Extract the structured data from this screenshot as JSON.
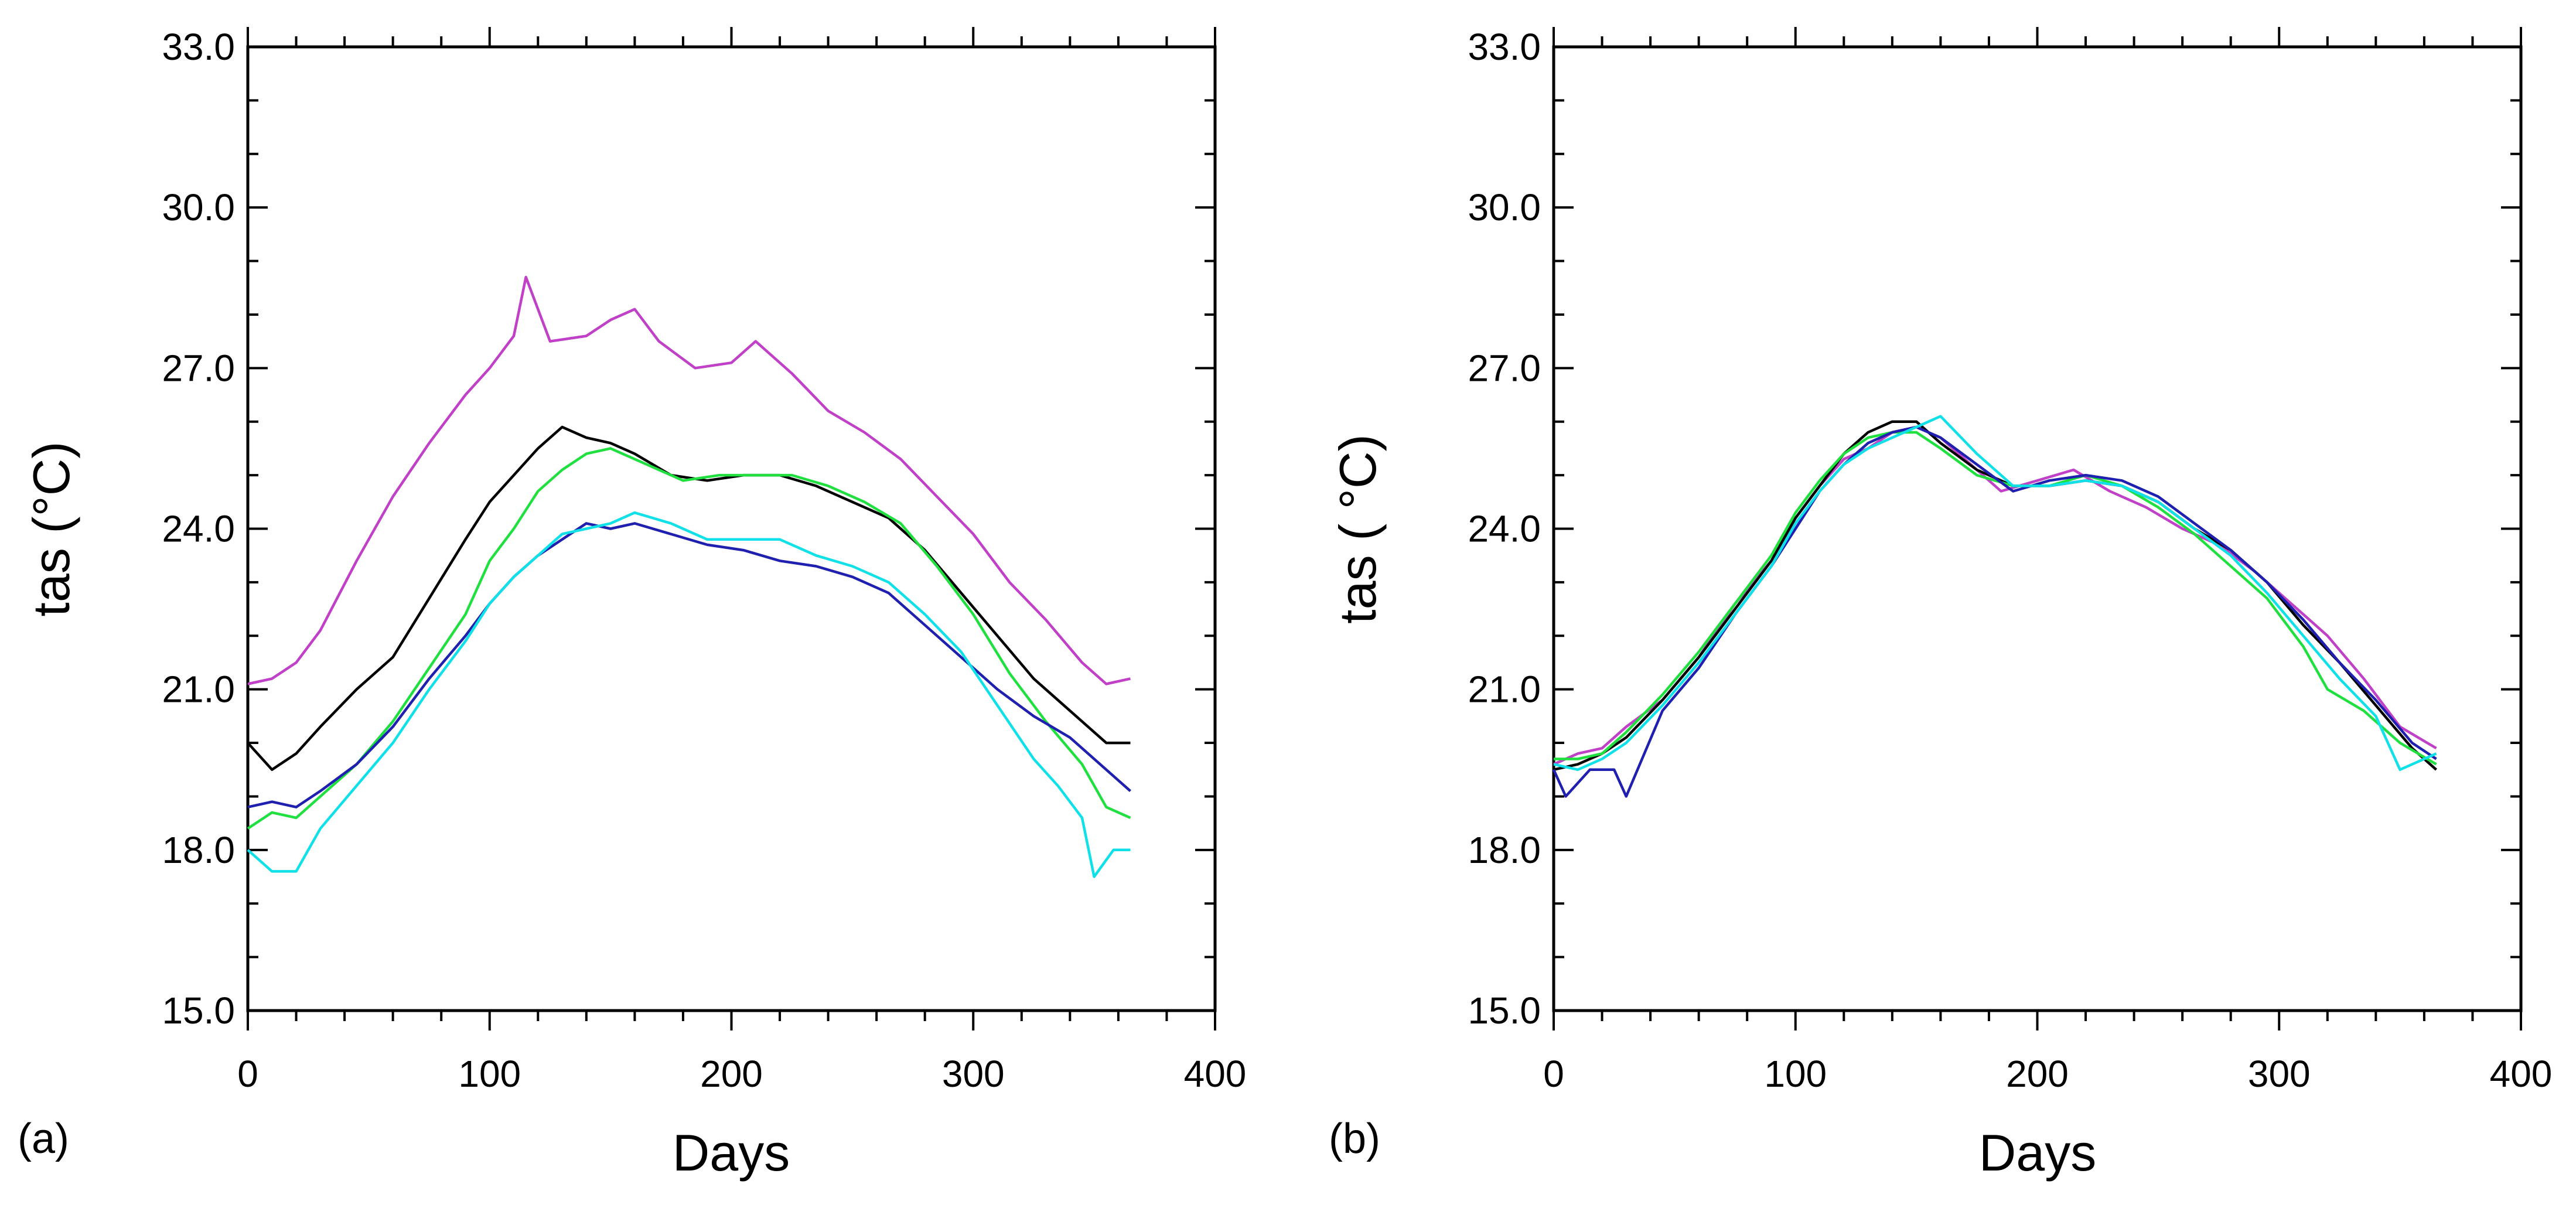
{
  "chart_data": [
    {
      "type": "line",
      "panel_label": "(a)",
      "title": "",
      "xlabel": "Days",
      "ylabel": "tas  (°C)",
      "xlim": [
        0,
        400
      ],
      "ylim": [
        15.0,
        33.0
      ],
      "xticks": [
        0,
        100,
        200,
        300,
        400
      ],
      "xtick_labels": [
        "0",
        "100",
        "200",
        "300",
        "400"
      ],
      "yticks": [
        15.0,
        18.0,
        21.0,
        24.0,
        27.0,
        30.0,
        33.0
      ],
      "ytick_labels": [
        "15.0",
        "18.0",
        "21.0",
        "24.0",
        "27.0",
        "30.0",
        "33.0"
      ],
      "grid": false,
      "series": [
        {
          "name": "magenta",
          "color": "#c040c8",
          "x": [
            0,
            10,
            20,
            30,
            45,
            60,
            75,
            90,
            100,
            110,
            115,
            125,
            140,
            150,
            160,
            170,
            185,
            200,
            210,
            225,
            240,
            255,
            270,
            285,
            300,
            315,
            330,
            345,
            355,
            365
          ],
          "y": [
            21.1,
            21.2,
            21.5,
            22.1,
            23.4,
            24.6,
            25.6,
            26.5,
            27.0,
            27.6,
            28.7,
            27.5,
            27.6,
            27.9,
            28.1,
            27.5,
            27.0,
            27.1,
            27.5,
            26.9,
            26.2,
            25.8,
            25.3,
            24.6,
            23.9,
            23.0,
            22.3,
            21.5,
            21.1,
            21.2
          ]
        },
        {
          "name": "black",
          "color": "#000000",
          "x": [
            0,
            10,
            20,
            30,
            45,
            60,
            75,
            90,
            100,
            110,
            120,
            130,
            140,
            150,
            160,
            175,
            190,
            205,
            220,
            235,
            250,
            265,
            280,
            295,
            310,
            325,
            340,
            355,
            365
          ],
          "y": [
            20.0,
            19.5,
            19.8,
            20.3,
            21.0,
            21.6,
            22.7,
            23.8,
            24.5,
            25.0,
            25.5,
            25.9,
            25.7,
            25.6,
            25.4,
            25.0,
            24.9,
            25.0,
            25.0,
            24.8,
            24.5,
            24.2,
            23.6,
            22.8,
            22.0,
            21.2,
            20.6,
            20.0,
            20.0
          ]
        },
        {
          "name": "green",
          "color": "#20e040",
          "x": [
            0,
            10,
            20,
            30,
            45,
            60,
            75,
            90,
            100,
            110,
            120,
            130,
            140,
            150,
            165,
            180,
            195,
            210,
            225,
            240,
            255,
            270,
            285,
            300,
            315,
            330,
            345,
            355,
            365
          ],
          "y": [
            18.4,
            18.7,
            18.6,
            19.0,
            19.6,
            20.4,
            21.4,
            22.4,
            23.4,
            24.0,
            24.7,
            25.1,
            25.4,
            25.5,
            25.2,
            24.9,
            25.0,
            25.0,
            25.0,
            24.8,
            24.5,
            24.1,
            23.3,
            22.4,
            21.3,
            20.4,
            19.6,
            18.8,
            18.6
          ]
        },
        {
          "name": "navy",
          "color": "#2020b0",
          "x": [
            0,
            10,
            20,
            30,
            45,
            60,
            75,
            90,
            100,
            110,
            120,
            130,
            140,
            150,
            160,
            175,
            190,
            205,
            220,
            235,
            250,
            265,
            280,
            295,
            310,
            325,
            340,
            355,
            365
          ],
          "y": [
            18.8,
            18.9,
            18.8,
            19.1,
            19.6,
            20.3,
            21.2,
            22.0,
            22.6,
            23.1,
            23.5,
            23.8,
            24.1,
            24.0,
            24.1,
            23.9,
            23.7,
            23.6,
            23.4,
            23.3,
            23.1,
            22.8,
            22.2,
            21.6,
            21.0,
            20.5,
            20.1,
            19.5,
            19.1
          ]
        },
        {
          "name": "cyan",
          "color": "#10e0e8",
          "x": [
            0,
            10,
            20,
            30,
            45,
            60,
            75,
            90,
            100,
            110,
            120,
            130,
            140,
            150,
            160,
            175,
            190,
            205,
            220,
            235,
            250,
            265,
            280,
            295,
            310,
            325,
            335,
            345,
            350,
            358,
            365
          ],
          "y": [
            18.0,
            17.6,
            17.6,
            18.4,
            19.2,
            20.0,
            21.0,
            21.9,
            22.6,
            23.1,
            23.5,
            23.9,
            24.0,
            24.1,
            24.3,
            24.1,
            23.8,
            23.8,
            23.8,
            23.5,
            23.3,
            23.0,
            22.4,
            21.7,
            20.7,
            19.7,
            19.2,
            18.6,
            17.5,
            18.0,
            18.0
          ]
        }
      ]
    },
    {
      "type": "line",
      "panel_label": "(b)",
      "title": "",
      "xlabel": "Days",
      "ylabel": "tas ( °C)",
      "xlim": [
        0,
        400
      ],
      "ylim": [
        15.0,
        33.0
      ],
      "xticks": [
        0,
        100,
        200,
        300,
        400
      ],
      "xtick_labels": [
        "0",
        "100",
        "200",
        "300",
        "400"
      ],
      "yticks": [
        15.0,
        18.0,
        21.0,
        24.0,
        27.0,
        30.0,
        33.0
      ],
      "ytick_labels": [
        "15.0",
        "18.0",
        "21.0",
        "24.0",
        "27.0",
        "30.0",
        "33.0"
      ],
      "grid": false,
      "series": [
        {
          "name": "magenta",
          "color": "#c040c8",
          "x": [
            0,
            10,
            20,
            30,
            45,
            60,
            75,
            90,
            100,
            110,
            120,
            130,
            140,
            150,
            160,
            170,
            185,
            200,
            215,
            230,
            245,
            260,
            275,
            290,
            305,
            320,
            335,
            350,
            365
          ],
          "y": [
            19.6,
            19.8,
            19.9,
            20.3,
            20.8,
            21.6,
            22.6,
            23.4,
            24.2,
            24.8,
            25.3,
            25.5,
            25.8,
            25.9,
            25.7,
            25.3,
            24.7,
            24.9,
            25.1,
            24.7,
            24.4,
            24.0,
            23.7,
            23.2,
            22.6,
            22.0,
            21.2,
            20.3,
            19.9
          ]
        },
        {
          "name": "black",
          "color": "#000000",
          "x": [
            0,
            10,
            20,
            30,
            45,
            60,
            75,
            90,
            100,
            110,
            120,
            130,
            140,
            150,
            160,
            175,
            190,
            205,
            220,
            235,
            250,
            265,
            280,
            295,
            310,
            325,
            340,
            355,
            365
          ],
          "y": [
            19.5,
            19.6,
            19.8,
            20.1,
            20.8,
            21.6,
            22.5,
            23.4,
            24.2,
            24.8,
            25.4,
            25.8,
            26.0,
            26.0,
            25.6,
            25.1,
            24.8,
            24.8,
            24.9,
            24.8,
            24.5,
            24.0,
            23.6,
            23.0,
            22.2,
            21.5,
            20.7,
            19.9,
            19.5
          ]
        },
        {
          "name": "green",
          "color": "#20e040",
          "x": [
            0,
            10,
            20,
            30,
            45,
            60,
            75,
            90,
            100,
            110,
            120,
            130,
            140,
            150,
            160,
            175,
            190,
            205,
            220,
            235,
            250,
            265,
            280,
            295,
            310,
            320,
            335,
            350,
            365
          ],
          "y": [
            19.7,
            19.7,
            19.8,
            20.2,
            20.9,
            21.7,
            22.6,
            23.5,
            24.3,
            24.9,
            25.4,
            25.7,
            25.8,
            25.8,
            25.5,
            25.0,
            24.8,
            24.8,
            25.0,
            24.8,
            24.4,
            23.9,
            23.3,
            22.7,
            21.8,
            21.0,
            20.6,
            20.0,
            19.6
          ]
        },
        {
          "name": "navy",
          "color": "#2020b0",
          "x": [
            0,
            5,
            15,
            25,
            30,
            45,
            60,
            75,
            90,
            100,
            110,
            120,
            130,
            140,
            150,
            160,
            175,
            190,
            205,
            220,
            235,
            250,
            265,
            280,
            295,
            310,
            325,
            340,
            355,
            365
          ],
          "y": [
            19.5,
            19.0,
            19.5,
            19.5,
            19.0,
            20.6,
            21.4,
            22.4,
            23.3,
            24.0,
            24.7,
            25.2,
            25.6,
            25.8,
            25.9,
            25.7,
            25.2,
            24.7,
            24.9,
            25.0,
            24.9,
            24.6,
            24.1,
            23.6,
            23.0,
            22.3,
            21.5,
            20.8,
            20.0,
            19.7
          ]
        },
        {
          "name": "cyan",
          "color": "#10e0e8",
          "x": [
            0,
            10,
            20,
            30,
            45,
            60,
            75,
            90,
            100,
            110,
            120,
            130,
            140,
            150,
            160,
            175,
            190,
            205,
            220,
            235,
            250,
            265,
            280,
            295,
            310,
            325,
            340,
            350,
            365
          ],
          "y": [
            19.6,
            19.5,
            19.7,
            20.0,
            20.7,
            21.5,
            22.4,
            23.3,
            24.1,
            24.7,
            25.2,
            25.5,
            25.7,
            25.9,
            26.1,
            25.4,
            24.8,
            24.8,
            24.9,
            24.8,
            24.5,
            24.0,
            23.5,
            22.8,
            22.0,
            21.2,
            20.5,
            19.5,
            19.8
          ]
        }
      ]
    }
  ]
}
